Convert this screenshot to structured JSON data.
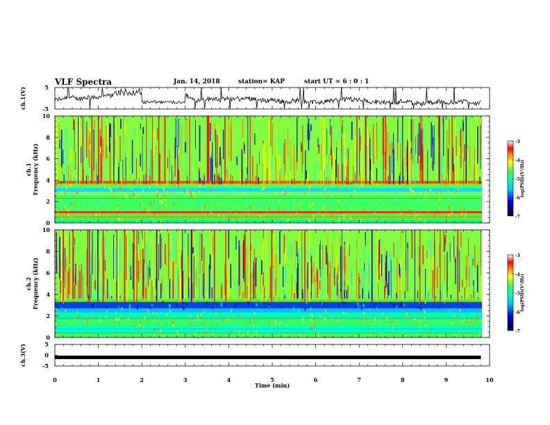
{
  "header": {
    "title": "VLF Spectra",
    "date": "Jan. 14, 2018",
    "station": "station= KAP",
    "start": "start  UT =  6 : 0  : 1"
  },
  "colors": {
    "colormap": [
      "#000080",
      "#0000ff",
      "#0080ff",
      "#00ffff",
      "#80ff80",
      "#00ff00",
      "#ffff00",
      "#ff8000",
      "#ff0000",
      "#ff8080",
      "#ffffff"
    ]
  },
  "chart_data": [
    {
      "type": "line",
      "ylabel": "ch.1(V)",
      "ylim": [
        -5,
        5
      ],
      "yticks": [
        "5",
        "-5"
      ],
      "note": "noisy trace around -1 V, xlim 0-10 min"
    },
    {
      "type": "heatmap",
      "ylabel_top": "ch.1",
      "ylabel": "Frequency  (kHz)",
      "ylim": [
        0,
        10
      ],
      "yticks": [
        "0",
        "2",
        "4",
        "6",
        "8",
        "10"
      ],
      "colorbar_label": "log(PSD)(V²/Hz)",
      "colorbar_ticks": [
        "-3",
        "-4",
        "-5",
        "-6",
        "-7"
      ],
      "clim": [
        -7,
        -3
      ]
    },
    {
      "type": "heatmap",
      "ylabel_top": "ch.2",
      "ylabel": "Frequency  (kHz)",
      "ylim": [
        0,
        10
      ],
      "yticks": [
        "0",
        "2",
        "4",
        "6",
        "8",
        "10"
      ],
      "colorbar_label": "log(PSD)(V²/Hz)",
      "colorbar_ticks": [
        "-3",
        "-4",
        "-5",
        "-6",
        "-7"
      ],
      "clim": [
        -7,
        -3
      ]
    },
    {
      "type": "line",
      "ylabel": "ch.3(V)",
      "ylim": [
        -5,
        5
      ],
      "yticks": [
        "5",
        "0",
        "-5"
      ],
      "series": [
        {
          "x": [
            0,
            9.8
          ],
          "y": [
            -1,
            -1
          ]
        }
      ]
    }
  ],
  "xaxis": {
    "xlabel": "Time  (min)",
    "xlim": [
      0,
      10
    ],
    "ticks": [
      "0",
      "1",
      "2",
      "3",
      "4",
      "5",
      "6",
      "7",
      "8",
      "9",
      "10"
    ]
  }
}
